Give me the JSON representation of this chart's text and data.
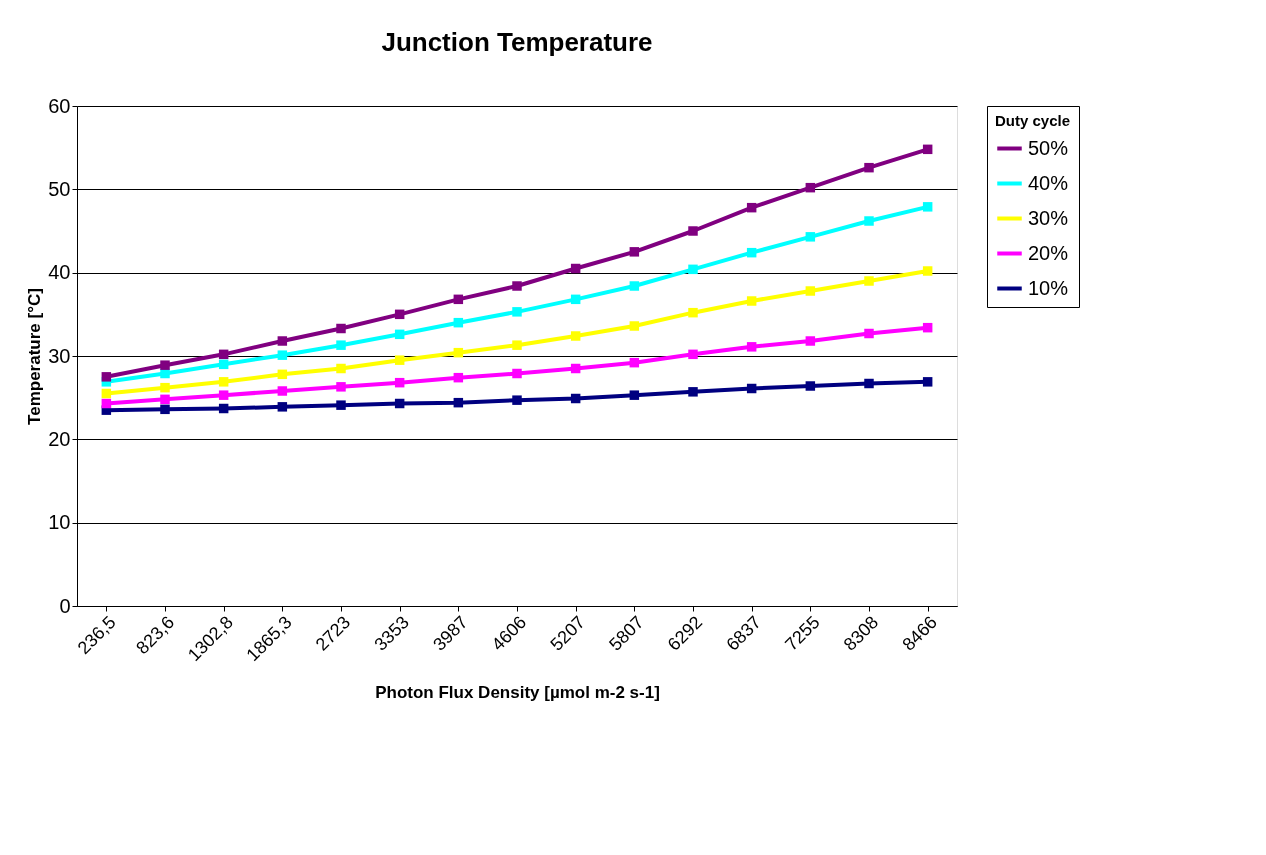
{
  "chart_data": {
    "type": "line",
    "title": "Junction Temperature",
    "xlabel": "Photon Flux Density [µmol m-2 s-1]",
    "ylabel": "Temperature [°C]",
    "legend_title": "Duty cycle",
    "categories": [
      "236,5",
      "823,6",
      "1302,8",
      "1865,3",
      "2723",
      "3353",
      "3987",
      "4606",
      "5207",
      "5807",
      "6292",
      "6837",
      "7255",
      "8308",
      "8466"
    ],
    "series": [
      {
        "name": "50%",
        "color": "#800080",
        "values": [
          27.5,
          28.9,
          30.2,
          31.8,
          33.3,
          35.0,
          36.8,
          38.4,
          40.5,
          42.5,
          45.0,
          47.8,
          50.2,
          52.6,
          54.8
        ]
      },
      {
        "name": "40%",
        "color": "#00ffff",
        "values": [
          26.9,
          27.9,
          29.0,
          30.1,
          31.3,
          32.6,
          34.0,
          35.3,
          36.8,
          38.4,
          40.4,
          42.4,
          44.3,
          46.2,
          47.9
        ]
      },
      {
        "name": "30%",
        "color": "#ffff00",
        "values": [
          25.5,
          26.2,
          26.9,
          27.8,
          28.5,
          29.5,
          30.4,
          31.3,
          32.4,
          33.6,
          35.2,
          36.6,
          37.8,
          39.0,
          40.2
        ]
      },
      {
        "name": "20%",
        "color": "#ff00ff",
        "values": [
          24.3,
          24.8,
          25.3,
          25.8,
          26.3,
          26.8,
          27.4,
          27.9,
          28.5,
          29.2,
          30.2,
          31.1,
          31.8,
          32.7,
          33.4
        ]
      },
      {
        "name": "10%",
        "color": "#000080",
        "values": [
          23.5,
          23.6,
          23.7,
          23.9,
          24.1,
          24.3,
          24.4,
          24.7,
          24.9,
          25.3,
          25.7,
          26.1,
          26.4,
          26.7,
          26.9
        ]
      }
    ],
    "ylim": [
      0,
      60
    ],
    "yticks": [
      0,
      10,
      20,
      30,
      40,
      50,
      60
    ],
    "grid": "y",
    "legend": "right",
    "marker": "square",
    "line_style": "solid"
  }
}
